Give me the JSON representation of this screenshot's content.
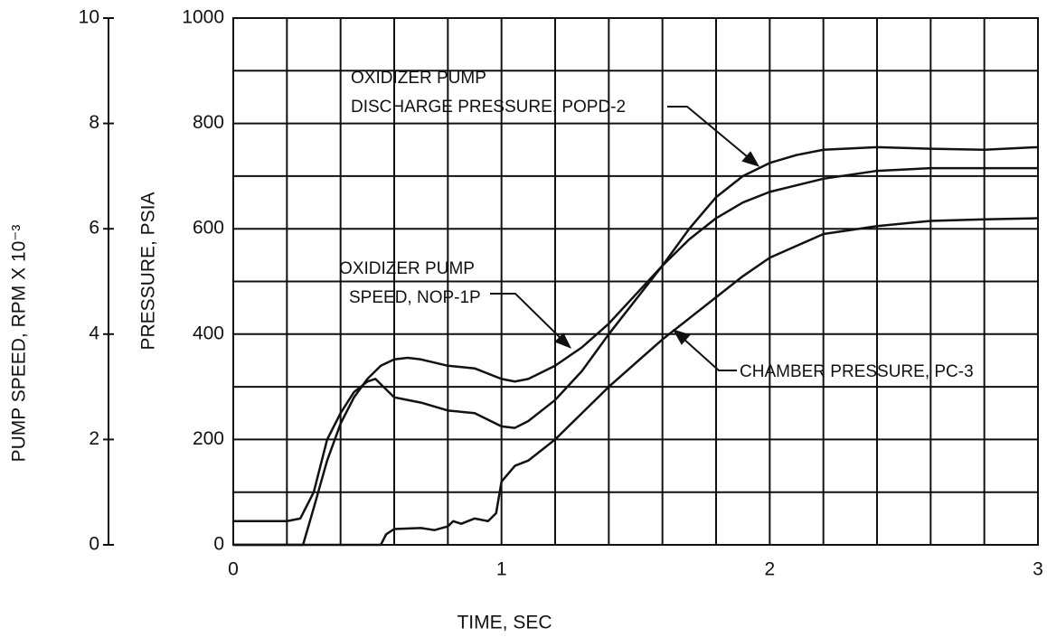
{
  "chart_data": {
    "type": "line",
    "xlabel": "TIME, SEC",
    "ylabel": "PRESSURE, PSIA",
    "y2label": "PUMP SPEED, RPM X 10⁻³",
    "xlim": [
      0,
      3
    ],
    "xticks": [
      0,
      1,
      2,
      3
    ],
    "minor_xticks": [
      0.2,
      0.4,
      0.6,
      0.8,
      1.2,
      1.4,
      1.6,
      1.8,
      2.2,
      2.4,
      2.6,
      2.8
    ],
    "ylim": [
      0,
      1000
    ],
    "yticks": [
      0,
      200,
      400,
      600,
      800,
      1000
    ],
    "minor_yticks": [
      100,
      300,
      500,
      700,
      900
    ],
    "y2lim": [
      0,
      10
    ],
    "y2ticks": [
      0,
      2,
      4,
      6,
      8,
      10
    ],
    "grid": true,
    "series": [
      {
        "name": "OXIDIZER PUMP DISCHARGE PRESSURE, POPD-2",
        "color": "#111111",
        "x": [
          0,
          0.2,
          0.25,
          0.3,
          0.35,
          0.4,
          0.45,
          0.5,
          0.53,
          0.56,
          0.6,
          0.7,
          0.8,
          0.9,
          1.0,
          1.05,
          1.1,
          1.2,
          1.3,
          1.4,
          1.5,
          1.6,
          1.7,
          1.8,
          1.9,
          2.0,
          2.1,
          2.2,
          2.4,
          2.6,
          2.8,
          3.0
        ],
        "values": [
          45,
          45,
          50,
          100,
          200,
          250,
          290,
          310,
          315,
          300,
          280,
          270,
          255,
          250,
          225,
          222,
          235,
          275,
          330,
          400,
          465,
          530,
          600,
          660,
          700,
          725,
          740,
          750,
          755,
          752,
          750,
          755
        ]
      },
      {
        "name": "OXIDIZER PUMP SPEED, NOP-1P",
        "color": "#111111",
        "axis": "y2",
        "x": [
          0,
          0.26,
          0.3,
          0.35,
          0.4,
          0.45,
          0.5,
          0.55,
          0.6,
          0.65,
          0.7,
          0.8,
          0.9,
          1.0,
          1.05,
          1.1,
          1.2,
          1.3,
          1.4,
          1.5,
          1.6,
          1.7,
          1.8,
          1.9,
          2.0,
          2.2,
          2.4,
          2.6,
          3.0
        ],
        "values": [
          0,
          0,
          0.7,
          1.6,
          2.3,
          2.8,
          3.15,
          3.4,
          3.52,
          3.55,
          3.52,
          3.4,
          3.35,
          3.15,
          3.1,
          3.15,
          3.4,
          3.75,
          4.2,
          4.75,
          5.3,
          5.8,
          6.2,
          6.5,
          6.7,
          6.95,
          7.1,
          7.15,
          7.15
        ]
      },
      {
        "name": "CHAMBER PRESSURE, PC-3",
        "color": "#111111",
        "x": [
          0,
          0.55,
          0.57,
          0.6,
          0.7,
          0.75,
          0.8,
          0.82,
          0.85,
          0.9,
          0.95,
          0.98,
          1.0,
          1.05,
          1.1,
          1.2,
          1.3,
          1.4,
          1.5,
          1.6,
          1.7,
          1.8,
          1.9,
          2.0,
          2.2,
          2.4,
          2.6,
          2.8,
          3.0
        ],
        "values": [
          0,
          0,
          20,
          30,
          32,
          28,
          35,
          45,
          40,
          50,
          45,
          60,
          120,
          150,
          160,
          200,
          250,
          300,
          345,
          390,
          430,
          470,
          510,
          545,
          590,
          605,
          615,
          618,
          620
        ]
      }
    ],
    "annotations": [
      {
        "lines": [
          "OXIDIZER PUMP",
          "DISCHARGE PRESSURE, POPD-2"
        ]
      },
      {
        "lines": [
          "OXIDIZER PUMP",
          "SPEED, NOP-1P"
        ]
      },
      {
        "lines": [
          "CHAMBER PRESSURE, PC-3"
        ]
      }
    ]
  }
}
